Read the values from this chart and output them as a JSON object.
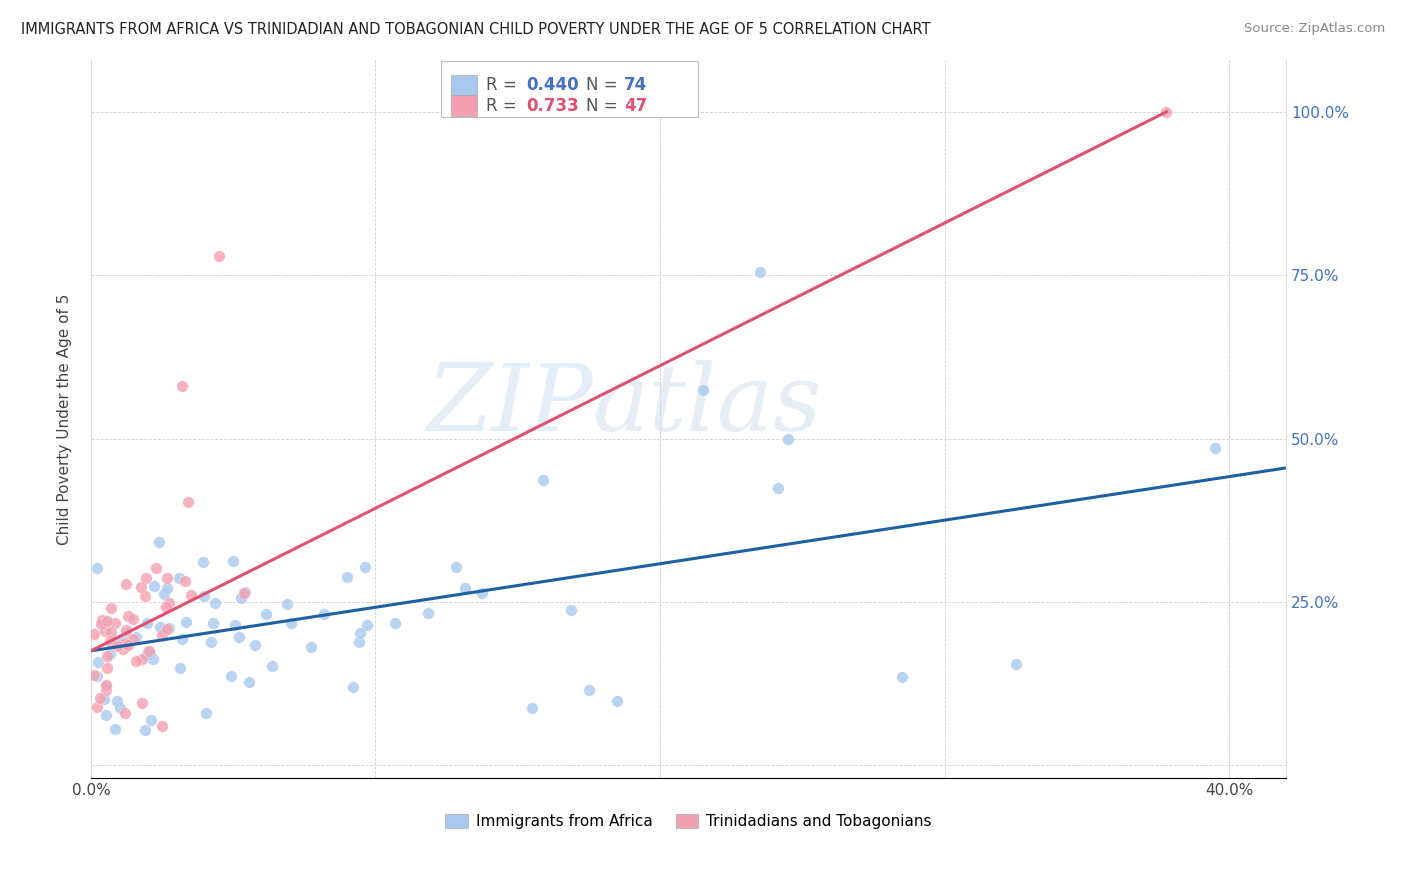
{
  "title": "IMMIGRANTS FROM AFRICA VS TRINIDADIAN AND TOBAGONIAN CHILD POVERTY UNDER THE AGE OF 5 CORRELATION CHART",
  "source": "Source: ZipAtlas.com",
  "ylabel": "Child Poverty Under the Age of 5",
  "xlim": [
    0.0,
    0.42
  ],
  "ylim": [
    -0.02,
    1.08
  ],
  "blue_R": 0.44,
  "blue_N": 74,
  "pink_R": 0.733,
  "pink_N": 47,
  "blue_color": "#a8c8f0",
  "pink_color": "#f4a0b0",
  "blue_line_color": "#2060a0",
  "pink_line_color": "#e05070",
  "watermark_zip": "ZIP",
  "watermark_atlas": "atlas",
  "blue_label": "Immigrants from Africa",
  "pink_label": "Trinidadians and Tobagonians",
  "blue_line_x": [
    0.0,
    0.42
  ],
  "blue_line_y": [
    0.175,
    0.455
  ],
  "pink_line_x": [
    0.0,
    0.378
  ],
  "pink_line_y": [
    0.175,
    1.0
  ]
}
